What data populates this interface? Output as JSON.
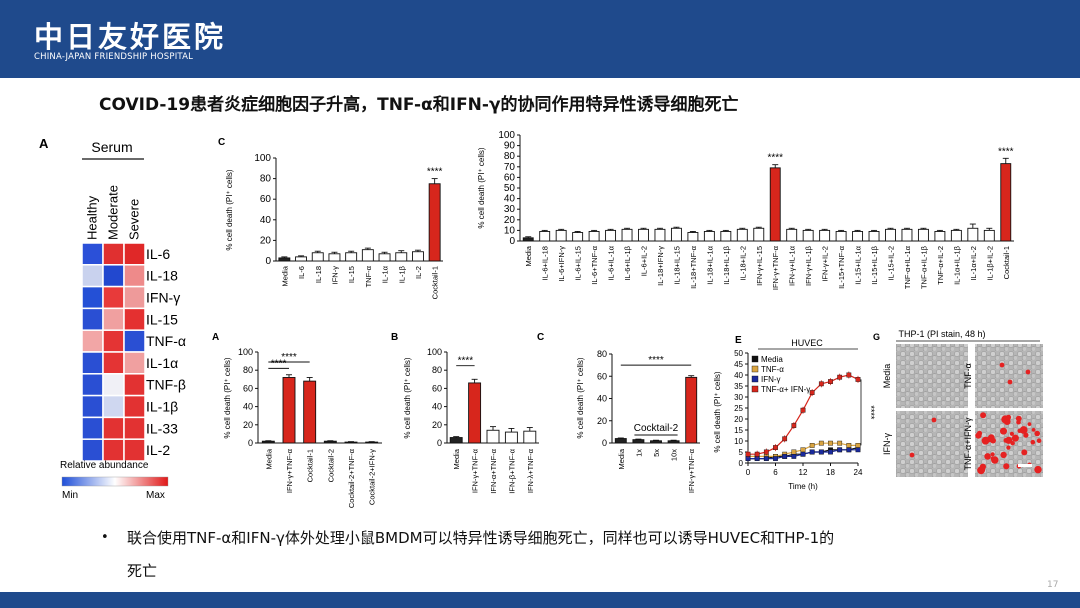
{
  "header": {
    "logo_cn": "中日友好医院",
    "logo_en": "CHINA-JAPAN FRIENDSHIP HOSPITAL",
    "color": "#1f4a8c"
  },
  "slide": {
    "title": "COVID-19患者炎症细胞因子升高，TNF-α和IFN-γ的协同作用特异性诱导细胞死亡",
    "bullet": "•",
    "text_line1": "联合使用TNF-α和IFN-γ体外处理小鼠BMDM可以特异性诱导细胞死亡，同样也可以诱导HUVEC和THP-1的",
    "text_line2": "死亡",
    "page_number": "17"
  },
  "colors": {
    "red_bar": "#d7261c",
    "white_bar": "#ffffff",
    "dark_bar": "#222222"
  },
  "heatmap": {
    "panel": "A",
    "group_label": "Serum",
    "columns": [
      "Healthy",
      "Moderate",
      "Severe"
    ],
    "rows": [
      "IL-6",
      "IL-18",
      "IFN-γ",
      "IL-15",
      "TNF-α",
      "IL-1α",
      "TNF-β",
      "IL-1β",
      "IL-33",
      "IL-2"
    ],
    "cells": [
      [
        "#2b50d8",
        "#e03030",
        "#e02828"
      ],
      [
        "#c9d2ee",
        "#2248cf",
        "#ee8a8a"
      ],
      [
        "#2450d6",
        "#e83a3a",
        "#ee9a9a"
      ],
      [
        "#2a4fd3",
        "#f0a0a0",
        "#e43030"
      ],
      [
        "#f2a6a6",
        "#e43434",
        "#2a4fd3"
      ],
      [
        "#2a4fd3",
        "#e43434",
        "#f0a0a0"
      ],
      [
        "#2a4fd3",
        "#f0f0f6",
        "#e23232"
      ],
      [
        "#2a4fd3",
        "#cfd7f0",
        "#e23232"
      ],
      [
        "#2a4fd3",
        "#e23232",
        "#e23232"
      ],
      [
        "#2a4fd3",
        "#e23232",
        "#e23232"
      ]
    ],
    "legend_label": "Relative abundance",
    "legend_min": "Min",
    "legend_max": "Max"
  },
  "chart_data": [
    {
      "id": "C1",
      "panel": "C",
      "type": "bar",
      "ylabel": "% cell death (PI⁺ cells)",
      "ylim": [
        0,
        100
      ],
      "yticks": [
        0,
        20,
        40,
        60,
        80,
        100
      ],
      "categories": [
        "Media",
        "IL-6",
        "IL-18",
        "IFN-γ",
        "IL-15",
        "TNF-α",
        "IL-1α",
        "IL-1β",
        "IL-2",
        "Cocktail-1"
      ],
      "values": [
        3,
        4,
        8,
        7,
        8,
        11,
        7,
        8,
        9,
        75
      ],
      "errors": [
        1,
        1,
        1.5,
        1.5,
        1.5,
        1.5,
        1.5,
        2,
        1.5,
        5
      ],
      "colors": [
        "#222222",
        "#ffffff",
        "#ffffff",
        "#ffffff",
        "#ffffff",
        "#ffffff",
        "#ffffff",
        "#ffffff",
        "#ffffff",
        "#d7261c"
      ],
      "annotations": [
        {
          "bar": 9,
          "text": "****"
        }
      ]
    },
    {
      "id": "C2",
      "panel": "",
      "type": "bar",
      "ylabel": "% cell death (PI⁺ cells)",
      "ylim": [
        0,
        100
      ],
      "yticks": [
        0,
        10,
        20,
        30,
        40,
        50,
        60,
        70,
        80,
        90,
        100
      ],
      "categories": [
        "Media",
        "IL-6+IL-18",
        "IL-6+IFN-γ",
        "IL-6+IL-15",
        "IL-6+TNF-α",
        "IL-6+IL-1α",
        "IL-6+IL-1β",
        "IL-6+IL-2",
        "IL-18+IFN-γ",
        "IL-18+IL-15",
        "IL-18+TNF-α",
        "IL-18+IL-1α",
        "IL-18+IL-1β",
        "IL-18+IL-2",
        "IFN-γ+IL-15",
        "IFN-γ+TNF-α",
        "IFN-γ+IL-1α",
        "IFN-γ+IL-1β",
        "IFN-γ+IL-2",
        "IL-15+TNF-α",
        "IL-15+IL-1α",
        "IL-15+IL-1β",
        "IL-15+IL-2",
        "TNF-α+IL-1α",
        "TNF-α+IL-1β",
        "TNF-α+IL-2",
        "IL-1α+IL-1β",
        "IL-1α+IL-2",
        "IL-1β+IL-2",
        "Cocktail-1"
      ],
      "values": [
        3,
        9,
        10,
        8,
        9,
        10,
        11,
        11,
        11,
        12,
        8,
        9,
        9,
        11,
        12,
        69,
        11,
        10,
        10,
        9,
        9,
        9,
        11,
        11,
        11,
        9,
        10,
        12,
        10,
        73
      ],
      "errors": [
        1,
        1,
        1,
        1,
        1,
        1,
        1,
        1,
        1,
        1,
        1,
        1,
        1,
        1,
        1,
        3,
        1,
        1,
        1,
        1,
        1,
        1,
        1,
        1,
        1,
        1,
        1,
        4,
        2,
        5
      ],
      "highlight": [
        15,
        29
      ],
      "dark": [
        0
      ],
      "annotations": [
        {
          "bar": 15,
          "text": "****"
        },
        {
          "bar": 29,
          "text": "****"
        }
      ]
    },
    {
      "id": "A2",
      "panel": "A",
      "type": "bar",
      "ylabel": "% cell death (PI⁺ cells)",
      "ylim": [
        0,
        100
      ],
      "yticks": [
        0,
        20,
        40,
        60,
        80,
        100
      ],
      "categories": [
        "Media",
        "IFN-γ+TNF-α",
        "Cocktail-1",
        "Cocktail-2",
        "Cocktail-2+TNF-α",
        "Cocktail-2+IFN-γ"
      ],
      "values": [
        2,
        72,
        68,
        2,
        1,
        1
      ],
      "errors": [
        0.5,
        3,
        4,
        0.5,
        0.5,
        0.5
      ],
      "colors": [
        "#222222",
        "#d7261c",
        "#d7261c",
        "#222222",
        "#222222",
        "#222222"
      ],
      "annotations": [
        {
          "from": 0,
          "to": 1,
          "text": "****",
          "level": 82
        },
        {
          "from": 0,
          "to": 2,
          "text": "****",
          "level": 89
        }
      ]
    },
    {
      "id": "B2",
      "panel": "B",
      "type": "bar",
      "ylabel": "% cell death (PI⁺ cells)",
      "ylim": [
        0,
        100
      ],
      "yticks": [
        0,
        20,
        40,
        60,
        80,
        100
      ],
      "categories": [
        "Media",
        "IFN-γ+TNF-α",
        "IFN-α+TNF-α",
        "IFN-β+TNF-α",
        "IFN-λ+TNF-α"
      ],
      "values": [
        6,
        66,
        14,
        12,
        13
      ],
      "errors": [
        1,
        4,
        4,
        4,
        4
      ],
      "colors": [
        "#222222",
        "#d7261c",
        "#ffffff",
        "#ffffff",
        "#ffffff"
      ],
      "annotations": [
        {
          "from": 0,
          "to": 1,
          "text": "****",
          "level": 85
        }
      ]
    },
    {
      "id": "C3",
      "panel": "C",
      "type": "bar",
      "ylabel": "% cell death (PI⁺ cells)",
      "ylim": [
        0,
        80
      ],
      "yticks": [
        0,
        20,
        40,
        60,
        80
      ],
      "categories": [
        "Media",
        "1x",
        "5x",
        "10x",
        "IFN-γ+TNF-α"
      ],
      "values": [
        4,
        3,
        2,
        2,
        59
      ],
      "errors": [
        0.5,
        0.5,
        0.5,
        0.5,
        1.5
      ],
      "colors": [
        "#222222",
        "#222222",
        "#222222",
        "#222222",
        "#d7261c"
      ],
      "group_label": {
        "from": 1,
        "to": 3,
        "text": "Cocktail-2"
      },
      "annotations": [
        {
          "from": 0,
          "to": 4,
          "text": "****",
          "level": 70
        }
      ]
    },
    {
      "id": "E",
      "panel": "E",
      "type": "line",
      "title": "HUVEC",
      "ylabel": "% cell death (PI⁺ cells)",
      "xlabel": "Time (h)",
      "ylim": [
        0,
        50
      ],
      "yticks": [
        0,
        5,
        10,
        15,
        20,
        25,
        30,
        35,
        40,
        45,
        50
      ],
      "xlim": [
        0,
        24
      ],
      "xticks": [
        0,
        6,
        12,
        18,
        24
      ],
      "x": [
        0,
        2,
        4,
        6,
        8,
        10,
        12,
        14,
        16,
        18,
        20,
        22,
        24
      ],
      "series": [
        {
          "name": "Media",
          "color": "#111111",
          "values": [
            2,
            2,
            2,
            3,
            3,
            4,
            4,
            5,
            5,
            6,
            6,
            6,
            7
          ]
        },
        {
          "name": "TNF-α",
          "color": "#d9a441",
          "values": [
            3,
            3,
            3,
            3,
            4,
            5,
            6,
            8,
            9,
            9,
            9,
            8,
            8
          ]
        },
        {
          "name": "IFN-γ",
          "color": "#1a2a9c",
          "values": [
            2,
            2,
            2,
            2,
            3,
            3,
            4,
            5,
            5,
            5,
            6,
            6,
            6
          ]
        },
        {
          "name": "TNF-α+ IFN-γ",
          "color": "#d7261c",
          "values": [
            4,
            4,
            5,
            7,
            11,
            17,
            24,
            32,
            36,
            37,
            39,
            40,
            38
          ]
        }
      ],
      "annotations": [
        {
          "text": "****"
        }
      ]
    }
  ],
  "microscopy": {
    "panel": "G",
    "title": "THP-1 (PI stain, 48 h)",
    "labels": [
      "Media",
      "TNF-α",
      "IFN-γ",
      "TNF-α+IFN-γ"
    ]
  }
}
